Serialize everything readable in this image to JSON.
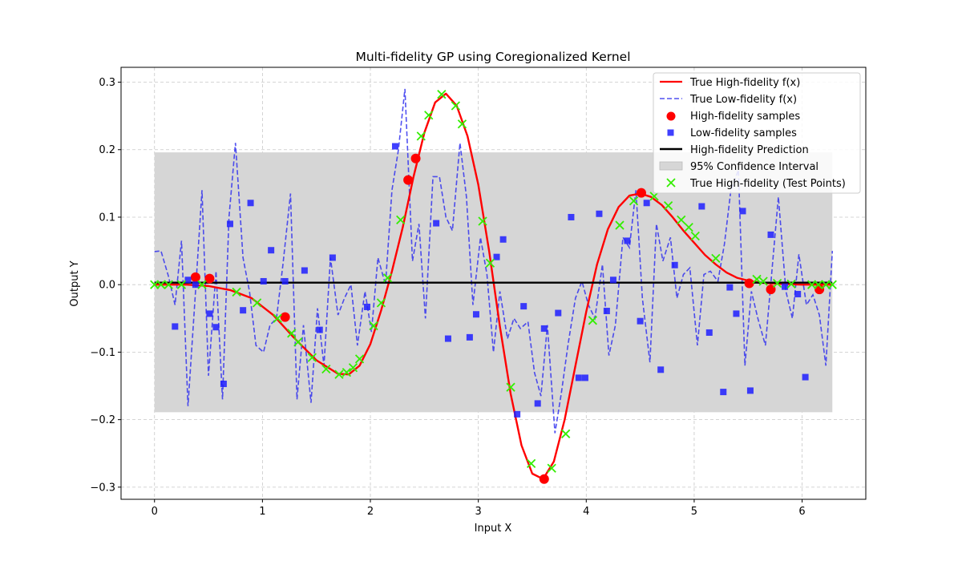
{
  "chart_data": {
    "type": "line",
    "title": "Multi-fidelity GP using Coregionalized Kernel",
    "xlabel": "Input X",
    "ylabel": "Output Y",
    "xlim": [
      -0.31,
      6.59
    ],
    "ylim": [
      -0.318,
      0.322
    ],
    "xticks": [
      0,
      1,
      2,
      3,
      4,
      5,
      6
    ],
    "yticks": [
      -0.3,
      -0.2,
      -0.1,
      0.0,
      0.1,
      0.2,
      0.3
    ],
    "xtick_labels": [
      "0",
      "1",
      "2",
      "3",
      "4",
      "5",
      "6"
    ],
    "ytick_labels": [
      "−0.3",
      "−0.2",
      "−0.1",
      "0.0",
      "0.1",
      "0.2",
      "0.3"
    ],
    "grid": true,
    "legend_position": "upper right",
    "legend": {
      "true_hf": "True High-fidelity f(x)",
      "true_lf": "True Low-fidelity f(x)",
      "hf_samples": "High-fidelity samples",
      "lf_samples": "Low-fidelity samples",
      "prediction": "High-fidelity Prediction",
      "ci": "95% Confidence Interval",
      "test_points": "True High-fidelity (Test Points)"
    },
    "colors": {
      "true_hf": "#ff0000",
      "true_lf": "#3333ee",
      "hf_samples": "#ff0000",
      "lf_samples": "#1f1fff",
      "prediction": "#000000",
      "ci": "#d6d6d6",
      "test_points": "#33ee00"
    },
    "series": {
      "true_hf": {
        "x": [
          0,
          0.3,
          0.5,
          0.7,
          0.9,
          1.1,
          1.3,
          1.5,
          1.7,
          1.8,
          1.9,
          2.0,
          2.1,
          2.2,
          2.3,
          2.4,
          2.5,
          2.6,
          2.7,
          2.8,
          2.9,
          3.0,
          3.1,
          3.2,
          3.3,
          3.4,
          3.5,
          3.6,
          3.7,
          3.8,
          3.9,
          4.0,
          4.1,
          4.2,
          4.3,
          4.4,
          4.5,
          4.6,
          4.7,
          4.8,
          4.9,
          5.0,
          5.1,
          5.2,
          5.3,
          5.4,
          5.5,
          5.6,
          5.8,
          6.0,
          6.28
        ],
        "y": [
          0.0,
          0.0,
          -0.002,
          -0.008,
          -0.02,
          -0.045,
          -0.08,
          -0.112,
          -0.132,
          -0.133,
          -0.12,
          -0.088,
          -0.038,
          0.02,
          0.085,
          0.16,
          0.225,
          0.27,
          0.283,
          0.265,
          0.22,
          0.148,
          0.05,
          -0.062,
          -0.162,
          -0.238,
          -0.28,
          -0.288,
          -0.262,
          -0.2,
          -0.12,
          -0.04,
          0.03,
          0.082,
          0.115,
          0.132,
          0.135,
          0.13,
          0.118,
          0.1,
          0.08,
          0.062,
          0.044,
          0.03,
          0.018,
          0.01,
          0.006,
          0.003,
          0.001,
          0.0,
          0.0
        ]
      },
      "true_lf": {
        "x": [
          0.0,
          0.06,
          0.13,
          0.19,
          0.25,
          0.31,
          0.38,
          0.44,
          0.5,
          0.57,
          0.63,
          0.69,
          0.75,
          0.82,
          0.88,
          0.94,
          1.01,
          1.07,
          1.13,
          1.19,
          1.26,
          1.32,
          1.38,
          1.45,
          1.51,
          1.57,
          1.63,
          1.7,
          1.76,
          1.82,
          1.88,
          1.95,
          2.01,
          2.07,
          2.14,
          2.2,
          2.26,
          2.32,
          2.39,
          2.45,
          2.51,
          2.58,
          2.64,
          2.7,
          2.76,
          2.83,
          2.89,
          2.95,
          3.02,
          3.08,
          3.14,
          3.2,
          3.27,
          3.33,
          3.39,
          3.46,
          3.52,
          3.58,
          3.64,
          3.71,
          3.77,
          3.83,
          3.9,
          3.96,
          4.02,
          4.08,
          4.15,
          4.21,
          4.27,
          4.34,
          4.4,
          4.46,
          4.52,
          4.59,
          4.65,
          4.71,
          4.78,
          4.84,
          4.9,
          4.96,
          5.03,
          5.09,
          5.15,
          5.22,
          5.28,
          5.34,
          5.41,
          5.47,
          5.53,
          5.59,
          5.66,
          5.72,
          5.78,
          5.85,
          5.91,
          5.97,
          6.04,
          6.1,
          6.16,
          6.22,
          6.28
        ],
        "y": [
          0.049,
          0.05,
          0.012,
          -0.03,
          0.065,
          -0.18,
          -0.01,
          0.14,
          -0.135,
          0.02,
          -0.17,
          0.1,
          0.21,
          0.04,
          -0.01,
          -0.09,
          -0.1,
          -0.06,
          -0.05,
          0.03,
          0.135,
          -0.17,
          -0.06,
          -0.175,
          -0.035,
          -0.12,
          0.04,
          -0.045,
          -0.02,
          0.0,
          -0.09,
          -0.01,
          -0.07,
          0.04,
          0.0,
          0.14,
          0.2,
          0.29,
          0.035,
          0.09,
          -0.05,
          0.16,
          0.16,
          0.1,
          0.08,
          0.21,
          0.13,
          -0.03,
          0.07,
          0.015,
          -0.1,
          -0.01,
          -0.08,
          -0.05,
          -0.065,
          -0.055,
          -0.13,
          -0.165,
          -0.06,
          -0.22,
          -0.16,
          -0.09,
          -0.02,
          0.005,
          -0.03,
          -0.05,
          0.03,
          -0.105,
          -0.06,
          0.07,
          0.055,
          0.14,
          -0.02,
          -0.115,
          0.09,
          0.035,
          0.07,
          -0.02,
          0.015,
          0.025,
          -0.09,
          0.015,
          0.02,
          0.005,
          0.06,
          0.14,
          0.17,
          -0.12,
          -0.01,
          -0.05,
          -0.09,
          0.02,
          0.13,
          -0.01,
          -0.05,
          0.045,
          -0.03,
          -0.015,
          -0.045,
          -0.12,
          0.05
        ]
      },
      "hf_samples": {
        "x": [
          0.38,
          0.51,
          1.21,
          2.35,
          2.42,
          3.61,
          4.51,
          5.51,
          5.71,
          6.16
        ],
        "y": [
          0.011,
          0.009,
          -0.048,
          0.155,
          0.187,
          -0.288,
          0.136,
          0.002,
          -0.007,
          -0.007
        ]
      },
      "lf_samples": {
        "x": [
          0.19,
          0.31,
          0.38,
          0.51,
          0.57,
          0.64,
          0.7,
          0.82,
          0.89,
          1.01,
          1.08,
          1.21,
          1.39,
          1.53,
          1.65,
          1.97,
          2.23,
          2.61,
          2.72,
          2.92,
          2.98,
          3.17,
          3.23,
          3.36,
          3.42,
          3.55,
          3.61,
          3.74,
          3.86,
          3.93,
          3.99,
          4.12,
          4.19,
          4.25,
          4.38,
          4.5,
          4.56,
          4.69,
          4.82,
          5.07,
          5.14,
          5.27,
          5.33,
          5.39,
          5.45,
          5.52,
          5.71,
          5.84,
          5.96,
          6.03
        ],
        "y": [
          -0.062,
          0.007,
          0.0,
          -0.043,
          -0.063,
          -0.147,
          0.09,
          -0.038,
          0.121,
          0.005,
          0.051,
          0.005,
          0.021,
          -0.067,
          0.04,
          -0.033,
          0.205,
          0.091,
          -0.08,
          -0.078,
          -0.044,
          0.041,
          0.067,
          -0.192,
          -0.032,
          -0.176,
          -0.065,
          -0.042,
          0.1,
          -0.138,
          -0.138,
          0.105,
          -0.039,
          0.007,
          0.065,
          -0.054,
          0.121,
          -0.126,
          0.029,
          0.116,
          -0.071,
          -0.159,
          -0.004,
          -0.043,
          0.109,
          -0.157,
          0.074,
          -0.003,
          -0.014,
          -0.137
        ]
      },
      "prediction": {
        "x": [
          0,
          6.28
        ],
        "y": [
          0.003,
          0.003
        ]
      },
      "ci": {
        "x": [
          0,
          6.28
        ],
        "lower": [
          -0.189,
          -0.189
        ],
        "upper": [
          0.196,
          0.196
        ]
      },
      "test_points": {
        "x": [
          0.0,
          0.06,
          0.13,
          0.25,
          0.44,
          0.76,
          0.95,
          1.14,
          1.27,
          1.33,
          1.46,
          1.59,
          1.71,
          1.78,
          1.84,
          1.9,
          2.03,
          2.1,
          2.16,
          2.28,
          2.47,
          2.54,
          2.66,
          2.79,
          2.85,
          3.04,
          3.11,
          3.3,
          3.49,
          3.68,
          3.81,
          4.06,
          4.31,
          4.44,
          4.63,
          4.76,
          4.88,
          4.95,
          5.01,
          5.2,
          5.58,
          5.64,
          5.77,
          5.9,
          6.09,
          6.15,
          6.22,
          6.28
        ],
        "y": [
          0.0,
          0.0,
          0.0,
          0.0,
          0.0,
          -0.011,
          -0.027,
          -0.05,
          -0.072,
          -0.085,
          -0.108,
          -0.125,
          -0.133,
          -0.13,
          -0.123,
          -0.11,
          -0.061,
          -0.027,
          0.01,
          0.096,
          0.22,
          0.251,
          0.282,
          0.265,
          0.238,
          0.094,
          0.032,
          -0.152,
          -0.265,
          -0.272,
          -0.221,
          -0.053,
          0.088,
          0.124,
          0.131,
          0.117,
          0.096,
          0.085,
          0.072,
          0.039,
          0.008,
          0.005,
          0.002,
          0.001,
          0.0,
          0.0,
          0.0,
          0.0
        ]
      }
    }
  }
}
